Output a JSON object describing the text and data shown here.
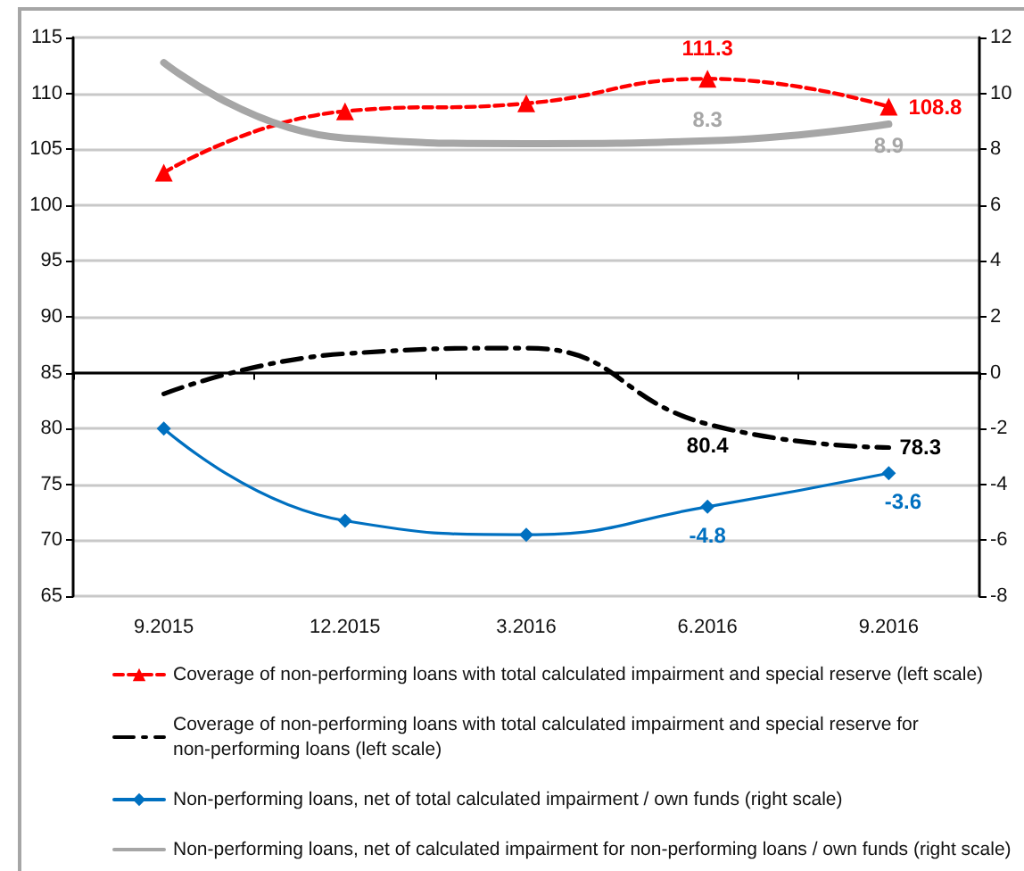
{
  "chart_data": {
    "type": "line",
    "categories": [
      "9.2015",
      "12.2015",
      "3.2016",
      "6.2016",
      "9.2016"
    ],
    "series": [
      {
        "name": "Coverage of non-performing loans with total calculated impairment and special reserve (left scale)",
        "color": "#ff0000",
        "values": [
          102.9,
          108.4,
          109.1,
          111.3,
          108.8
        ],
        "value_labels": [
          null,
          null,
          null,
          "111.3",
          "108.8"
        ],
        "marker": "triangle",
        "line_style": "dashed"
      },
      {
        "name": "Coverage of non-performing loans with total calculated impairment and special reserve for non-performing loans (left scale)",
        "color": "#000000",
        "values": [
          83.1,
          86.7,
          87.2,
          80.4,
          78.3
        ],
        "value_labels": [
          null,
          null,
          null,
          "80.4",
          "78.3"
        ],
        "marker": "none",
        "line_style": "dashdot"
      },
      {
        "name": "Non-performing loans, net of total calculated impairment / own funds (right scale)",
        "color": "#0070c0",
        "values": [
          -2.0,
          -5.3,
          -5.8,
          -4.8,
          -3.6
        ],
        "value_labels": [
          null,
          null,
          null,
          "-4.8",
          "-3.6"
        ],
        "axis": "y2",
        "marker": "diamond",
        "line_style": "solid"
      },
      {
        "name": "Non-performing loans, net of calculated impairment for non-performing loans / own funds (right scale)",
        "color": "#a6a6a6",
        "values": [
          11.1,
          8.4,
          8.2,
          8.3,
          8.9
        ],
        "value_labels": [
          null,
          null,
          null,
          "8.3",
          "8.9"
        ],
        "axis": "y2",
        "marker": "none",
        "line_style": "solid"
      }
    ],
    "ylim": [
      65,
      115
    ],
    "yticks": [
      65,
      70,
      75,
      80,
      85,
      90,
      95,
      100,
      105,
      110,
      115
    ],
    "y2lim": [
      -8,
      12
    ],
    "y2ticks": [
      -8,
      -6,
      -4,
      -2,
      0,
      2,
      4,
      6,
      8,
      10,
      12
    ],
    "grid": "y",
    "legend": "bottom"
  }
}
